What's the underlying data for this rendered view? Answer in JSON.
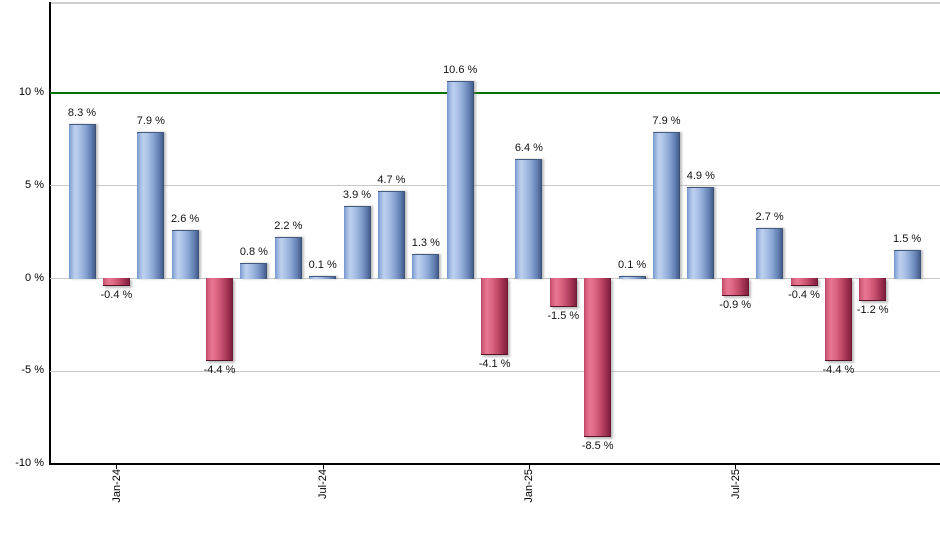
{
  "chart_data": {
    "type": "bar",
    "title": "",
    "unit": "%",
    "value_suffix": " %",
    "values": [
      8.3,
      -0.4,
      7.9,
      2.6,
      -4.4,
      0.8,
      2.2,
      0.1,
      3.9,
      4.7,
      1.3,
      10.6,
      -4.1,
      6.4,
      -1.5,
      -8.5,
      0.1,
      7.9,
      4.9,
      -0.9,
      2.7,
      -0.4,
      -4.4,
      -1.2,
      1.5
    ],
    "bar_value_labels": [
      "8.3 %",
      "-0.4 %",
      "7.9 %",
      "2.6 %",
      "-4.4 %",
      "0.8 %",
      "2.2 %",
      "0.1 %",
      "3.9 %",
      "4.7 %",
      "1.3 %",
      "10.6 %",
      "-4.1 %",
      "6.4 %",
      "-1.5 %",
      "-8.5 %",
      "0.1 %",
      "7.9 %",
      "4.9 %",
      "-0.9 %",
      "2.7 %",
      "-0.4 %",
      "-4.4 %",
      "-1.2 %",
      "1.5 %"
    ],
    "x_axis": {
      "ticks": [
        {
          "slot": 1,
          "label": "Jan-24"
        },
        {
          "slot": 7,
          "label": "Jul-24"
        },
        {
          "slot": 13,
          "label": "Jan-25"
        },
        {
          "slot": 19,
          "label": "Jul-25"
        }
      ]
    },
    "y_axis": {
      "ticks": [
        {
          "value": 10,
          "label": "10 %"
        },
        {
          "value": 5,
          "label": "5 %"
        },
        {
          "value": 0,
          "label": "0 %"
        },
        {
          "value": -5,
          "label": "-5 %"
        },
        {
          "value": -10,
          "label": "-10 %"
        }
      ],
      "range": [
        -10,
        14.8
      ],
      "gridline_values": [
        5,
        0,
        -5
      ],
      "reference_line_value": 10
    },
    "grid": true,
    "legend": "none",
    "colors": {
      "positive_bar": "#88a8dc",
      "negative_bar": "#cc4a6b",
      "reference_line": "#007000",
      "gridline": "#c8c8c8",
      "axis": "#000000",
      "background": "#ffffff"
    }
  }
}
